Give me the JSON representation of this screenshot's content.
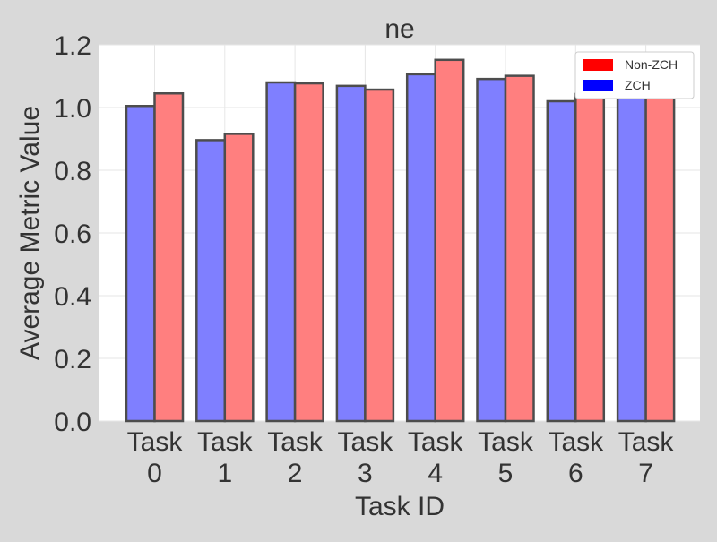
{
  "chart_data": {
    "type": "bar",
    "title": "ne",
    "xlabel": "Task ID",
    "ylabel": "Average Metric Value",
    "categories": [
      [
        "Task",
        "0"
      ],
      [
        "Task",
        "1"
      ],
      [
        "Task",
        "2"
      ],
      [
        "Task",
        "3"
      ],
      [
        "Task",
        "4"
      ],
      [
        "Task",
        "5"
      ],
      [
        "Task",
        "6"
      ],
      [
        "Task",
        "7"
      ]
    ],
    "series": [
      {
        "name": "ZCH",
        "values": [
          1.005,
          0.896,
          1.08,
          1.069,
          1.106,
          1.091,
          1.02,
          1.065
        ]
      },
      {
        "name": "Non-ZCH",
        "values": [
          1.045,
          0.916,
          1.077,
          1.057,
          1.152,
          1.101,
          1.043,
          1.075
        ]
      }
    ],
    "ylim": [
      0,
      1.2
    ],
    "yticks": [
      "0.0",
      "0.2",
      "0.4",
      "0.6",
      "0.8",
      "1.0",
      "1.2"
    ],
    "grid": true,
    "legend": {
      "position": "upper right",
      "entries": [
        {
          "label": "Non-ZCH",
          "color": "#ff0000"
        },
        {
          "label": "ZCH",
          "color": "#0000ff"
        }
      ]
    },
    "colors": {
      "ZCH": "#7f7fff",
      "Non-ZCH": "#ff7f7f",
      "bar_edge": "#4d4d4d",
      "plot_background": "#ffffff",
      "figure_background": "#d9d9d9",
      "grid": "#e6e6e6"
    }
  }
}
